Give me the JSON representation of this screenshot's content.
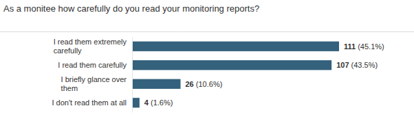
{
  "chart_data": {
    "type": "bar",
    "title": "As a monitee how carefully do you read your monitoring reports?",
    "orientation": "horizontal",
    "categories": [
      "I read them extremely carefully",
      "I read them carefully",
      "I briefly glance over them",
      "I don't read them at all"
    ],
    "values": [
      111,
      107,
      26,
      4
    ],
    "value_labels": [
      "111 (45.1%)",
      "107 (43.5%)",
      "26 (10.6%)",
      "4 (1.6%)"
    ],
    "color": "#34617c",
    "xlim": [
      0,
      111
    ],
    "data_labels": true,
    "tick_labels": "y"
  }
}
